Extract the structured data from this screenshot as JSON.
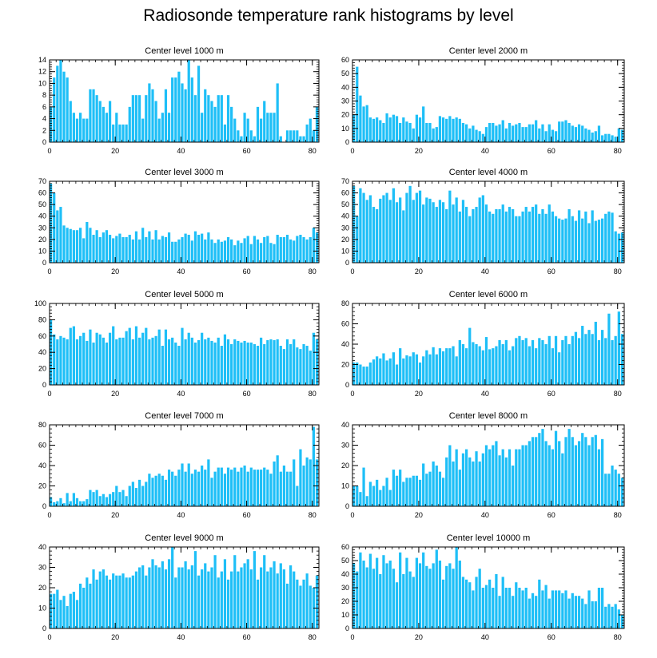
{
  "title": "Radiosonde temperature rank histograms by level",
  "colors": {
    "bar": "#1EBFF7",
    "axis": "#000000"
  },
  "chart_data": [
    {
      "type": "bar",
      "title": "Center level 1000 m",
      "xlabel": "",
      "ylabel": "",
      "xlim": [
        0,
        82
      ],
      "ylim": [
        0,
        14
      ],
      "xticks": [
        0,
        20,
        40,
        60,
        80
      ],
      "yticks": [
        0,
        2,
        4,
        6,
        8,
        10,
        12,
        14
      ],
      "values": [
        6,
        11,
        13,
        14,
        12,
        11,
        7,
        5,
        4,
        5,
        4,
        4,
        9,
        9,
        8,
        7,
        6,
        5,
        7,
        3,
        5,
        3,
        3,
        3,
        6,
        8,
        8,
        8,
        4,
        8,
        10,
        9,
        7,
        4,
        5,
        9,
        5,
        11,
        11,
        12,
        10,
        9,
        14,
        11,
        8,
        13,
        5,
        9,
        8,
        7,
        6,
        8,
        8,
        3,
        8,
        6,
        4,
        2,
        1,
        5,
        4,
        2,
        1,
        6,
        4,
        7,
        5,
        5,
        5,
        10,
        1,
        0,
        2,
        2,
        2,
        2,
        1,
        1,
        3,
        4,
        2,
        6
      ]
    },
    {
      "type": "bar",
      "title": "Center level 2000 m",
      "xlabel": "",
      "ylabel": "",
      "xlim": [
        0,
        82
      ],
      "ylim": [
        0,
        60
      ],
      "xticks": [
        0,
        20,
        40,
        60,
        80
      ],
      "yticks": [
        0,
        10,
        20,
        30,
        40,
        50,
        60
      ],
      "values": [
        20,
        55,
        34,
        26,
        27,
        18,
        17,
        18,
        16,
        14,
        21,
        18,
        20,
        19,
        14,
        18,
        15,
        14,
        10,
        20,
        18,
        26,
        14,
        14,
        10,
        11,
        19,
        18,
        17,
        19,
        17,
        18,
        17,
        14,
        13,
        10,
        12,
        9,
        8,
        6,
        11,
        14,
        14,
        12,
        13,
        16,
        10,
        14,
        12,
        13,
        14,
        11,
        11,
        13,
        13,
        16,
        10,
        13,
        8,
        13,
        9,
        8,
        15,
        15,
        16,
        14,
        12,
        11,
        13,
        12,
        10,
        9,
        7,
        8,
        12,
        5,
        6,
        6,
        5,
        4,
        10,
        9
      ]
    },
    {
      "type": "bar",
      "title": "Center level 3000 m",
      "xlabel": "",
      "ylabel": "",
      "xlim": [
        0,
        82
      ],
      "ylim": [
        0,
        70
      ],
      "xticks": [
        0,
        20,
        40,
        60,
        80
      ],
      "yticks": [
        0,
        10,
        20,
        30,
        40,
        50,
        60,
        70
      ],
      "values": [
        68,
        60,
        45,
        48,
        32,
        30,
        29,
        28,
        28,
        30,
        21,
        35,
        30,
        24,
        28,
        22,
        26,
        28,
        24,
        21,
        23,
        25,
        22,
        22,
        24,
        20,
        27,
        20,
        30,
        22,
        27,
        20,
        28,
        20,
        23,
        22,
        26,
        18,
        18,
        20,
        22,
        25,
        24,
        19,
        27,
        24,
        25,
        20,
        26,
        20,
        17,
        20,
        18,
        19,
        22,
        20,
        15,
        19,
        17,
        21,
        23,
        16,
        23,
        20,
        17,
        22,
        23,
        17,
        16,
        24,
        22,
        22,
        24,
        20,
        19,
        23,
        24,
        22,
        20,
        22,
        30,
        26
      ]
    },
    {
      "type": "bar",
      "title": "Center level 4000 m",
      "xlabel": "",
      "ylabel": "",
      "xlim": [
        0,
        82
      ],
      "ylim": [
        0,
        70
      ],
      "xticks": [
        0,
        20,
        40,
        60,
        80
      ],
      "yticks": [
        0,
        10,
        20,
        30,
        40,
        50,
        60,
        70
      ],
      "values": [
        66,
        40,
        64,
        60,
        54,
        58,
        48,
        46,
        55,
        58,
        60,
        54,
        64,
        52,
        56,
        45,
        60,
        66,
        54,
        60,
        62,
        50,
        56,
        55,
        52,
        48,
        54,
        52,
        46,
        62,
        50,
        56,
        44,
        54,
        48,
        40,
        46,
        48,
        56,
        58,
        50,
        44,
        42,
        46,
        46,
        50,
        44,
        48,
        46,
        40,
        40,
        44,
        48,
        44,
        48,
        50,
        42,
        46,
        42,
        50,
        44,
        40,
        38,
        37,
        38,
        46,
        40,
        36,
        45,
        38,
        44,
        34,
        45,
        36,
        37,
        38,
        42,
        44,
        43,
        27,
        25,
        26
      ]
    },
    {
      "type": "bar",
      "title": "Center level 5000 m",
      "xlabel": "",
      "ylabel": "",
      "xlim": [
        0,
        82
      ],
      "ylim": [
        0,
        100
      ],
      "xticks": [
        0,
        20,
        40,
        60,
        80
      ],
      "yticks": [
        0,
        20,
        40,
        60,
        80,
        100
      ],
      "values": [
        80,
        62,
        56,
        60,
        58,
        56,
        70,
        72,
        56,
        60,
        64,
        54,
        68,
        52,
        64,
        62,
        58,
        52,
        64,
        72,
        56,
        58,
        58,
        66,
        70,
        56,
        72,
        58,
        64,
        70,
        56,
        58,
        60,
        68,
        48,
        68,
        56,
        58,
        52,
        48,
        70,
        56,
        64,
        58,
        52,
        55,
        64,
        56,
        58,
        54,
        52,
        58,
        48,
        62,
        56,
        50,
        56,
        54,
        52,
        54,
        52,
        52,
        50,
        48,
        58,
        50,
        55,
        56,
        55,
        56,
        48,
        44,
        56,
        50,
        56,
        46,
        44,
        50,
        48,
        42,
        64,
        56
      ]
    },
    {
      "type": "bar",
      "title": "Center level 6000 m",
      "xlabel": "",
      "ylabel": "",
      "xlim": [
        0,
        82
      ],
      "ylim": [
        0,
        80
      ],
      "xticks": [
        0,
        20,
        40,
        60,
        80
      ],
      "yticks": [
        0,
        20,
        40,
        60,
        80
      ],
      "values": [
        22,
        22,
        20,
        18,
        18,
        22,
        25,
        28,
        26,
        31,
        24,
        26,
        32,
        20,
        36,
        26,
        29,
        28,
        32,
        30,
        22,
        28,
        34,
        30,
        37,
        30,
        36,
        33,
        36,
        36,
        38,
        28,
        44,
        40,
        36,
        56,
        42,
        40,
        38,
        34,
        47,
        35,
        36,
        38,
        44,
        40,
        44,
        34,
        38,
        46,
        48,
        44,
        46,
        38,
        44,
        36,
        46,
        44,
        40,
        48,
        36,
        48,
        32,
        44,
        48,
        40,
        48,
        52,
        46,
        58,
        50,
        54,
        50,
        62,
        44,
        54,
        46,
        70,
        44,
        48,
        72,
        50
      ]
    },
    {
      "type": "bar",
      "title": "Center level 7000 m",
      "xlabel": "",
      "ylabel": "",
      "xlim": [
        0,
        82
      ],
      "ylim": [
        0,
        80
      ],
      "xticks": [
        0,
        20,
        40,
        60,
        80
      ],
      "yticks": [
        0,
        20,
        40,
        60,
        80
      ],
      "values": [
        9,
        4,
        5,
        8,
        3,
        13,
        5,
        13,
        8,
        5,
        5,
        7,
        16,
        14,
        16,
        10,
        12,
        9,
        12,
        14,
        20,
        14,
        16,
        10,
        20,
        24,
        18,
        26,
        20,
        24,
        32,
        28,
        30,
        32,
        30,
        26,
        36,
        34,
        30,
        36,
        42,
        34,
        42,
        32,
        36,
        34,
        40,
        36,
        46,
        28,
        34,
        38,
        38,
        32,
        38,
        36,
        38,
        34,
        38,
        40,
        34,
        38,
        36,
        36,
        36,
        38,
        36,
        32,
        44,
        50,
        34,
        40,
        34,
        34,
        46,
        20,
        56,
        40,
        48,
        46,
        78,
        46
      ]
    },
    {
      "type": "bar",
      "title": "Center level 8000 m",
      "xlabel": "",
      "ylabel": "",
      "xlim": [
        0,
        82
      ],
      "ylim": [
        0,
        40
      ],
      "xticks": [
        0,
        20,
        40,
        60,
        80
      ],
      "yticks": [
        0,
        10,
        20,
        30,
        40
      ],
      "values": [
        10,
        10,
        7,
        19,
        5,
        12,
        10,
        13,
        8,
        10,
        14,
        8,
        18,
        15,
        18,
        12,
        14,
        14,
        15,
        15,
        13,
        21,
        16,
        17,
        22,
        20,
        17,
        14,
        24,
        30,
        22,
        28,
        18,
        26,
        28,
        24,
        22,
        27,
        22,
        26,
        30,
        28,
        30,
        32,
        25,
        28,
        24,
        28,
        20,
        28,
        28,
        30,
        30,
        32,
        34,
        34,
        36,
        38,
        32,
        30,
        28,
        37,
        32,
        26,
        34,
        38,
        34,
        30,
        32,
        36,
        34,
        30,
        34,
        35,
        28,
        33,
        16,
        16,
        20,
        18,
        16,
        14
      ]
    },
    {
      "type": "bar",
      "title": "Center level 9000 m",
      "xlabel": "",
      "ylabel": "",
      "xlim": [
        0,
        82
      ],
      "ylim": [
        0,
        40
      ],
      "xticks": [
        0,
        20,
        40,
        60,
        80
      ],
      "yticks": [
        0,
        10,
        20,
        30,
        40
      ],
      "values": [
        17,
        17,
        19,
        14,
        16,
        11,
        17,
        18,
        14,
        22,
        20,
        25,
        22,
        29,
        24,
        28,
        29,
        26,
        24,
        27,
        26,
        26,
        27,
        25,
        25,
        26,
        28,
        30,
        31,
        26,
        30,
        34,
        31,
        30,
        33,
        29,
        34,
        40,
        25,
        30,
        30,
        33,
        29,
        31,
        38,
        26,
        29,
        32,
        28,
        30,
        36,
        25,
        28,
        34,
        24,
        28,
        36,
        28,
        30,
        32,
        34,
        29,
        38,
        24,
        30,
        36,
        28,
        30,
        33,
        27,
        32,
        29,
        22,
        31,
        28,
        24,
        21,
        24,
        27,
        21,
        20,
        26
      ]
    },
    {
      "type": "bar",
      "title": "Center level 10000 m",
      "xlabel": "",
      "ylabel": "",
      "xlim": [
        0,
        82
      ],
      "ylim": [
        0,
        60
      ],
      "xticks": [
        0,
        20,
        40,
        60,
        80
      ],
      "yticks": [
        0,
        10,
        20,
        30,
        40,
        50,
        60
      ],
      "values": [
        48,
        42,
        56,
        50,
        45,
        55,
        44,
        52,
        40,
        54,
        48,
        50,
        44,
        34,
        56,
        40,
        52,
        42,
        38,
        52,
        48,
        56,
        46,
        44,
        48,
        58,
        50,
        36,
        46,
        48,
        44,
        60,
        50,
        38,
        36,
        34,
        28,
        38,
        44,
        30,
        32,
        36,
        30,
        40,
        24,
        38,
        30,
        30,
        24,
        34,
        30,
        28,
        30,
        22,
        26,
        24,
        36,
        28,
        32,
        22,
        28,
        28,
        28,
        26,
        28,
        22,
        26,
        24,
        24,
        22,
        18,
        28,
        20,
        20,
        30,
        30,
        16,
        18,
        16,
        18,
        14,
        10
      ]
    }
  ]
}
